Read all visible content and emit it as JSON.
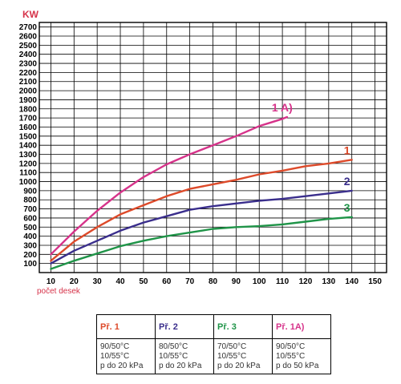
{
  "chart_data": {
    "type": "line",
    "ylabel": "KW",
    "xlabel": "počet desek",
    "xlim": [
      10,
      150
    ],
    "ylim": [
      0,
      2700
    ],
    "xticks": [
      10,
      20,
      30,
      40,
      50,
      60,
      70,
      80,
      90,
      100,
      110,
      120,
      130,
      140,
      150
    ],
    "yticks": [
      100,
      200,
      300,
      400,
      500,
      600,
      700,
      800,
      900,
      1000,
      1100,
      1200,
      1300,
      1400,
      1500,
      1600,
      1700,
      1800,
      1900,
      2000,
      2100,
      2200,
      2300,
      2400,
      2500,
      2600,
      2700
    ],
    "grid": true,
    "series": [
      {
        "name": "1 A)",
        "color": "#d6338a",
        "x": [
          10,
          20,
          30,
          40,
          50,
          60,
          70,
          80,
          90,
          100,
          110,
          112
        ],
        "values": [
          200,
          450,
          680,
          880,
          1050,
          1190,
          1300,
          1400,
          1500,
          1610,
          1690,
          1710
        ]
      },
      {
        "name": "1",
        "color": "#dd4a2a",
        "x": [
          10,
          20,
          30,
          40,
          50,
          60,
          70,
          80,
          90,
          100,
          110,
          120,
          130,
          140
        ],
        "values": [
          130,
          340,
          500,
          640,
          740,
          840,
          920,
          970,
          1020,
          1080,
          1120,
          1170,
          1200,
          1240
        ]
      },
      {
        "name": "2",
        "color": "#3a2e8c",
        "x": [
          10,
          20,
          30,
          40,
          50,
          60,
          70,
          80,
          90,
          100,
          110,
          120,
          130,
          140
        ],
        "values": [
          100,
          240,
          350,
          460,
          550,
          620,
          690,
          730,
          760,
          790,
          810,
          840,
          870,
          900
        ]
      },
      {
        "name": "3",
        "color": "#1f9448",
        "x": [
          10,
          20,
          30,
          40,
          50,
          60,
          70,
          80,
          90,
          100,
          110,
          120,
          130,
          140
        ],
        "values": [
          40,
          130,
          210,
          290,
          350,
          400,
          440,
          480,
          500,
          510,
          530,
          560,
          590,
          610
        ]
      }
    ]
  },
  "legend": [
    {
      "title": "Př. 1",
      "color": "#dd4a2a",
      "line1": "90/50°C",
      "line2": "10/55°C",
      "line3": "p do 20 kPa"
    },
    {
      "title": "Př. 2",
      "color": "#3a2e8c",
      "line1": "80/50°C",
      "line2": "10/55°C",
      "line3": "p do 20 kPa"
    },
    {
      "title": "Př. 3",
      "color": "#1f9448",
      "line1": "70/50°C",
      "line2": "10/55°C",
      "line3": "p do 20 kPa"
    },
    {
      "title": "Př. 1A)",
      "color": "#d6338a",
      "line1": "90/50°C",
      "line2": "10/55°C",
      "line3": "p do 50 kPa"
    }
  ]
}
